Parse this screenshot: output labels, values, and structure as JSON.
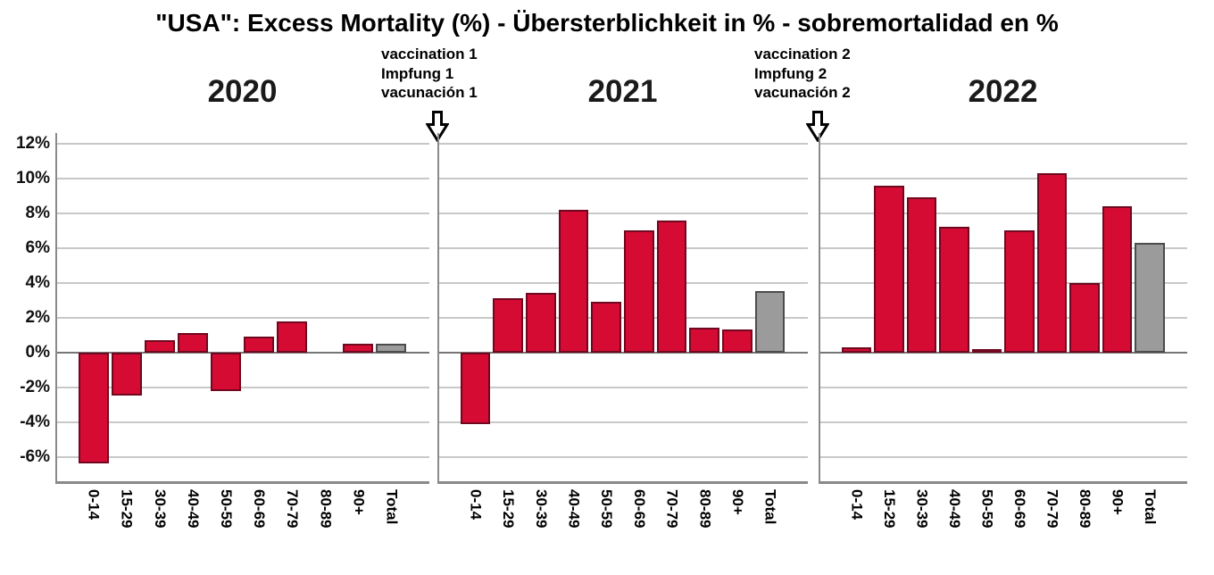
{
  "title": "\"USA\": Excess Mortality (%) - Übersterblichkeit in % - sobremortalidad en %",
  "annotations": [
    {
      "lines": [
        "vaccination 1",
        "Impfung 1",
        "vacunación 1"
      ]
    },
    {
      "lines": [
        "vaccination 2",
        "Impfung 2",
        "vacunación 2"
      ]
    }
  ],
  "colors": {
    "bar_red": "#d60b33",
    "bar_red_border": "#70081f",
    "bar_gray": "#9b9b9b",
    "bar_gray_border": "#4c4c4c",
    "gridline": "#c8c8c8",
    "zero_line": "#767676",
    "axis": "#8a8a8a",
    "text": "#000000"
  },
  "chart_data": {
    "type": "bar",
    "title": "\"USA\": Excess Mortality (%) - Übersterblichkeit in % - sobremortalidad en %",
    "categories": [
      "0-14",
      "15-29",
      "30-39",
      "40-49",
      "50-59",
      "60-69",
      "70-79",
      "80-89",
      "90+",
      "Total"
    ],
    "ylabel": "Excess mortality (%)",
    "ylim": [
      -7.4,
      12.6
    ],
    "yticks": [
      12,
      10,
      8,
      6,
      4,
      2,
      0,
      -2,
      -4,
      -6
    ],
    "ytick_labels": [
      "12%",
      "10%",
      "8%",
      "6%",
      "4%",
      "2%",
      "0%",
      "-2%",
      "-4%",
      "-6%"
    ],
    "grid": true,
    "legend": false,
    "total_category_color": "gray",
    "age_category_color": "red",
    "panels": [
      {
        "year": "2020",
        "values": [
          -6.4,
          -2.5,
          0.7,
          1.1,
          -2.2,
          0.9,
          1.8,
          0.0,
          0.5,
          0.5
        ]
      },
      {
        "year": "2021",
        "values": [
          -4.1,
          3.1,
          3.4,
          8.2,
          2.9,
          7.0,
          7.6,
          1.4,
          1.3,
          3.5
        ]
      },
      {
        "year": "2022",
        "values": [
          0.3,
          9.6,
          8.9,
          7.2,
          0.2,
          7.0,
          10.3,
          4.0,
          8.4,
          6.3
        ]
      }
    ],
    "annotations": [
      {
        "text": "vaccination 1 / Impfung 1 / vacunación 1",
        "points_to": "start of 2021 panel"
      },
      {
        "text": "vaccination 2 / Impfung 2 / vacunación 2",
        "points_to": "start of 2022 panel"
      }
    ]
  }
}
